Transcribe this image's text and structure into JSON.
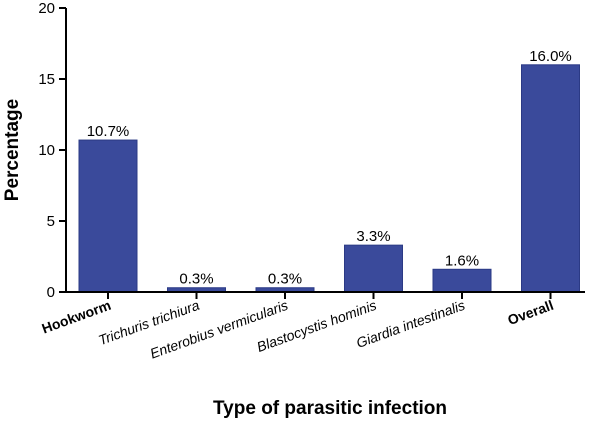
{
  "chart_data": {
    "type": "bar",
    "categories": [
      "Hookworm",
      "Trichuris trichiura",
      "Enterobius vermicularis",
      "Blastocystis hominis",
      "Giardia intestinalis",
      "Overall"
    ],
    "category_styles": [
      "bold",
      "italic",
      "italic",
      "italic",
      "italic",
      "bold"
    ],
    "values": [
      10.7,
      0.3,
      0.3,
      3.3,
      1.6,
      16.0
    ],
    "data_labels": [
      "10.7%",
      "0.3%",
      "0.3%",
      "3.3%",
      "1.6%",
      "16.0%"
    ],
    "xlabel": "Type of parasitic infection",
    "ylabel": "Percentage",
    "ylim": [
      0,
      20
    ],
    "yticks": [
      0,
      5,
      10,
      15,
      20
    ],
    "ytick_labels": [
      "0",
      "5",
      "10",
      "15",
      "20"
    ],
    "bar_color": "#3a4a9b",
    "bar_edge_color": "#2b3a85",
    "grid": false,
    "legend": "none"
  }
}
